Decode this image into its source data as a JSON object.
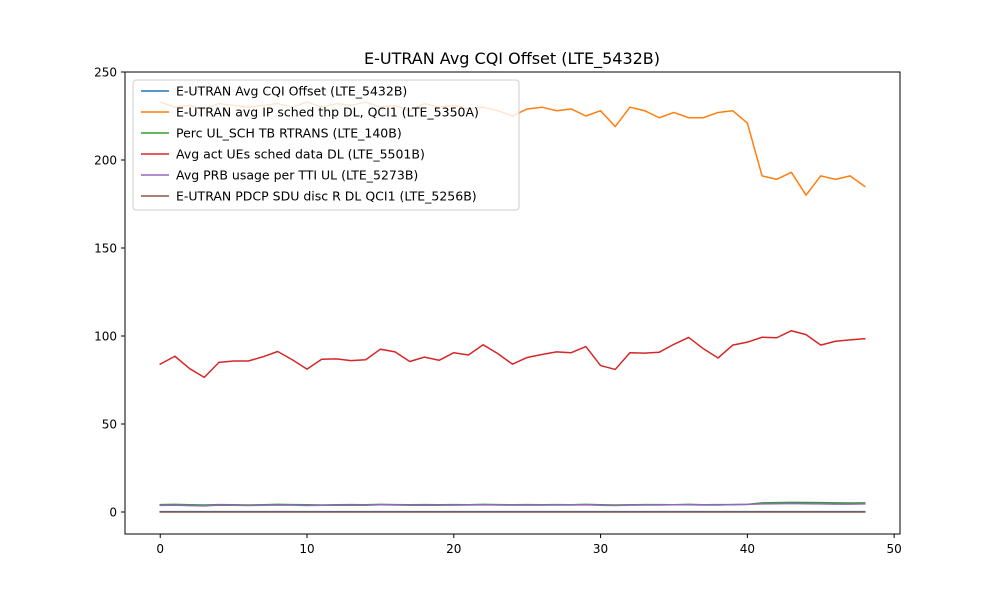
{
  "chart_data": {
    "type": "line",
    "title": "E-UTRAN Avg CQI Offset (LTE_5432B)",
    "xlabel": "",
    "ylabel": "",
    "xlim": [
      -2.4,
      50.4
    ],
    "ylim": [
      -12.5,
      250
    ],
    "xticks": [
      0,
      10,
      20,
      30,
      40,
      50
    ],
    "yticks": [
      0,
      50,
      100,
      150,
      200,
      250
    ],
    "grid": false,
    "legend_position": "top-left",
    "x": [
      0,
      1,
      2,
      3,
      4,
      5,
      6,
      7,
      8,
      9,
      10,
      11,
      12,
      13,
      14,
      15,
      16,
      17,
      18,
      19,
      20,
      21,
      22,
      23,
      24,
      25,
      26,
      27,
      28,
      29,
      30,
      31,
      32,
      33,
      34,
      35,
      36,
      37,
      38,
      39,
      40,
      41,
      42,
      43,
      44,
      45,
      46,
      47,
      48
    ],
    "series": [
      {
        "name": "E-UTRAN Avg CQI Offset (LTE_5432B)",
        "color": "#1f77b4",
        "values": [
          0.2,
          0.2,
          0.2,
          0.2,
          0.2,
          0.2,
          0.2,
          0.2,
          0.2,
          0.2,
          0.2,
          0.2,
          0.2,
          0.2,
          0.2,
          0.2,
          0.2,
          0.2,
          0.2,
          0.2,
          0.2,
          0.2,
          0.2,
          0.2,
          0.2,
          0.2,
          0.2,
          0.2,
          0.2,
          0.2,
          0.2,
          0.2,
          0.2,
          0.2,
          0.2,
          0.2,
          0.2,
          0.2,
          0.2,
          0.2,
          0.2,
          0.2,
          0.2,
          0.2,
          0.2,
          0.2,
          0.2,
          0.2,
          0.2
        ]
      },
      {
        "name": "E-UTRAN avg IP sched thp DL, QCI1 (LTE_5350A)",
        "color": "#ff7f0e",
        "values": [
          233,
          230,
          231,
          229,
          232,
          231,
          230,
          231,
          232,
          230,
          233,
          230,
          232,
          231,
          233,
          230,
          231,
          228,
          232,
          230,
          231,
          229,
          230,
          228,
          225,
          229,
          230,
          228,
          229,
          225,
          228,
          219,
          230,
          228,
          224,
          227,
          224,
          224,
          227,
          228,
          221,
          191,
          189,
          193,
          180,
          191,
          189,
          191,
          185
        ]
      },
      {
        "name": "Perc UL_SCH TB RTRANS (LTE_140B)",
        "color": "#2ca02c",
        "values": [
          4.2,
          4.3,
          4.1,
          4.0,
          4.2,
          4.1,
          4.0,
          4.1,
          4.3,
          4.2,
          4.1,
          4.0,
          4.1,
          4.2,
          4.1,
          4.3,
          4.2,
          4.1,
          4.2,
          4.1,
          4.2,
          4.1,
          4.3,
          4.2,
          4.1,
          4.2,
          4.1,
          4.2,
          4.1,
          4.3,
          4.1,
          4.0,
          4.1,
          4.2,
          4.2,
          4.1,
          4.3,
          4.1,
          4.2,
          4.2,
          4.3,
          5.2,
          5.3,
          5.5,
          5.4,
          5.3,
          5.2,
          5.1,
          5.2
        ]
      },
      {
        "name": "Avg act UEs sched data DL (LTE_5501B)",
        "color": "#d62728",
        "values": [
          84,
          88.5,
          81.5,
          76.5,
          85,
          85.8,
          85.8,
          88.2,
          91.2,
          86.5,
          81.2,
          86.8,
          87,
          86,
          86.5,
          92.5,
          91,
          85.5,
          88,
          86.2,
          90.5,
          89.2,
          95,
          90,
          84,
          87.8,
          89.5,
          91,
          90.5,
          94,
          83.2,
          81,
          90.5,
          90.3,
          90.8,
          95.3,
          99.2,
          92.8,
          87.5,
          94.8,
          96.5,
          99.3,
          99,
          103,
          100.8,
          94.8,
          97,
          97.8,
          98.5
        ]
      },
      {
        "name": "Avg PRB usage per TTI UL (LTE_5273B)",
        "color": "#9467bd",
        "values": [
          3.8,
          3.9,
          3.6,
          3.5,
          3.9,
          3.8,
          3.7,
          3.8,
          4.0,
          3.9,
          3.7,
          3.8,
          3.8,
          3.9,
          3.8,
          4.1,
          4.0,
          3.8,
          3.9,
          3.8,
          3.9,
          4.0,
          4.1,
          4.0,
          3.9,
          4.0,
          3.9,
          4.0,
          4.0,
          4.1,
          3.8,
          3.7,
          3.9,
          4.0,
          4.0,
          4.1,
          4.1,
          4.0,
          4.0,
          4.2,
          4.3,
          4.6,
          4.7,
          4.8,
          4.7,
          4.6,
          4.5,
          4.5,
          4.6
        ]
      },
      {
        "name": "E-UTRAN PDCP SDU disc R DL QCI1 (LTE_5256B)",
        "color": "#8c564b",
        "values": [
          0,
          0,
          0,
          0,
          0,
          0,
          0,
          0,
          0,
          0,
          0,
          0,
          0,
          0,
          0,
          0,
          0,
          0,
          0,
          0,
          0,
          0,
          0,
          0,
          0,
          0,
          0,
          0,
          0,
          0,
          0,
          0,
          0,
          0,
          0,
          0,
          0,
          0,
          0,
          0,
          0,
          0,
          0,
          0,
          0,
          0,
          0,
          0,
          0
        ]
      }
    ]
  }
}
